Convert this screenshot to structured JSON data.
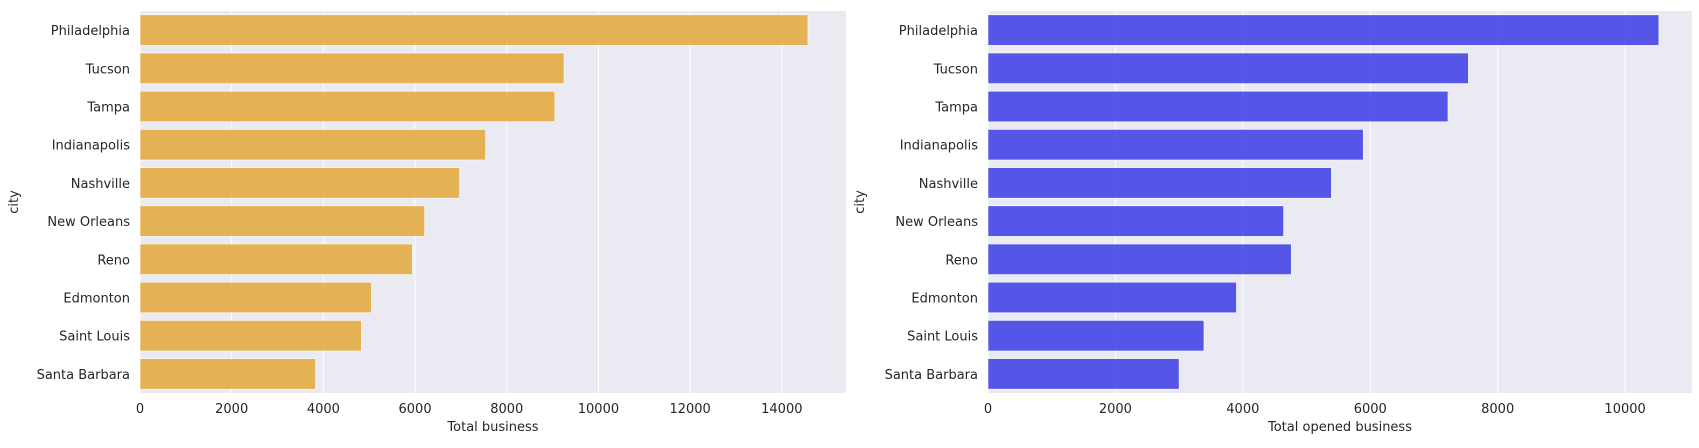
{
  "chart_data": [
    {
      "type": "bar",
      "orientation": "horizontal",
      "ylabel": "city",
      "xlabel": "Total business",
      "categories": [
        "Philadelphia",
        "Tucson",
        "Tampa",
        "Indianapolis",
        "Nashville",
        "New Orleans",
        "Reno",
        "Edmonton",
        "Saint Louis",
        "Santa Barbara"
      ],
      "values": [
        14570,
        9250,
        9050,
        7540,
        6970,
        6210,
        5940,
        5050,
        4830,
        3830
      ],
      "xlim": [
        0,
        15400
      ],
      "xticks": [
        "0",
        "2000",
        "4000",
        "6000",
        "8000",
        "10000",
        "12000",
        "14000"
      ],
      "grid": true,
      "color": "#E3A73A"
    },
    {
      "type": "bar",
      "orientation": "horizontal",
      "ylabel": "city",
      "xlabel": "Total opened business",
      "categories": [
        "Philadelphia",
        "Tucson",
        "Tampa",
        "Indianapolis",
        "Nashville",
        "New Orleans",
        "Reno",
        "Edmonton",
        "Saint Louis",
        "Santa Barbara"
      ],
      "values": [
        10530,
        7540,
        7220,
        5890,
        5390,
        4640,
        4760,
        3900,
        3390,
        3000
      ],
      "xlim": [
        0,
        11050
      ],
      "xticks": [
        "0",
        "2000",
        "4000",
        "6000",
        "8000",
        "10000"
      ],
      "grid": true,
      "color": "#3B3BE6"
    }
  ]
}
